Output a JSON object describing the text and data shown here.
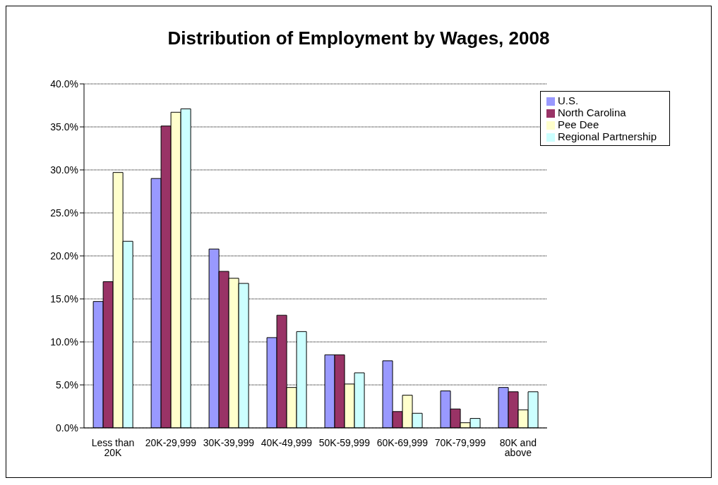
{
  "chart_data": {
    "type": "bar",
    "title": "Distribution of Employment by Wages, 2008",
    "categories": [
      "Less than 20K",
      "20K-29,999",
      "30K-39,999",
      "40K-49,999",
      "50K-59,999",
      "60K-69,999",
      "70K-79,999",
      "80K and above"
    ],
    "series": [
      {
        "name": "U.S.",
        "color": "#9999ff",
        "values": [
          14.7,
          29.0,
          20.8,
          10.5,
          8.5,
          7.8,
          4.3,
          4.7
        ]
      },
      {
        "name": "North Carolina",
        "color": "#993366",
        "values": [
          17.0,
          35.1,
          18.2,
          13.1,
          8.5,
          1.9,
          2.2,
          4.2
        ]
      },
      {
        "name": "Pee Dee",
        "color": "#ffffcc",
        "values": [
          29.7,
          36.7,
          17.4,
          4.7,
          5.1,
          3.8,
          0.6,
          2.1
        ]
      },
      {
        "name": "Regional Partnership",
        "color": "#ccffff",
        "values": [
          21.7,
          37.1,
          16.8,
          11.2,
          6.4,
          1.7,
          1.1,
          4.2
        ]
      }
    ],
    "ylim": [
      0,
      40
    ],
    "yticks": [
      {
        "value": 0,
        "label": "0.0%"
      },
      {
        "value": 5,
        "label": "5.0%"
      },
      {
        "value": 10,
        "label": "10.0%"
      },
      {
        "value": 15,
        "label": "15.0%"
      },
      {
        "value": 20,
        "label": "20.0%"
      },
      {
        "value": 25,
        "label": "25.0%"
      },
      {
        "value": 30,
        "label": "30.0%"
      },
      {
        "value": 35,
        "label": "35.0%"
      },
      {
        "value": 40,
        "label": "40.0%"
      }
    ],
    "grid": "y",
    "legend": "top right"
  }
}
